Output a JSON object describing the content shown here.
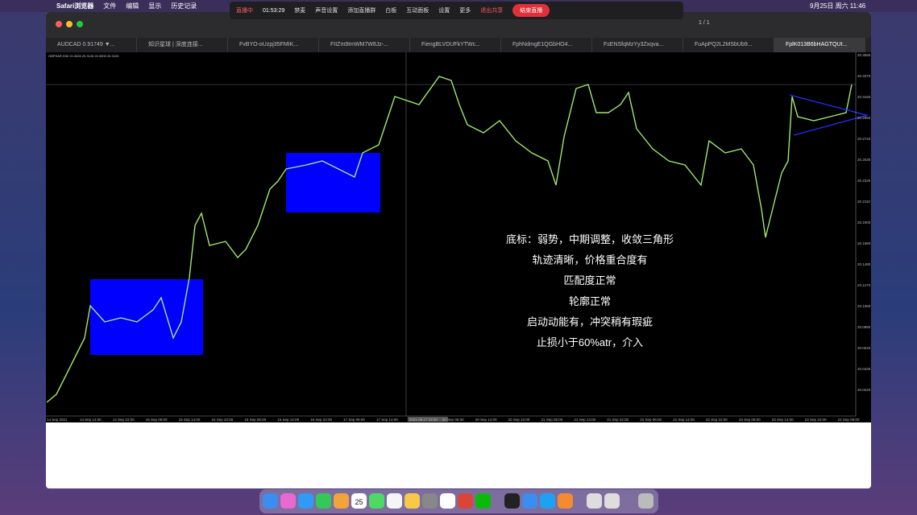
{
  "menu_bar": {
    "app": "Safari浏览器",
    "items": [
      "文件",
      "编辑",
      "显示",
      "历史记录"
    ],
    "clock": "9月25日 周六  11:46"
  },
  "recording_bar": {
    "status": "直播中",
    "timer": "01:53:29",
    "items": [
      "禁麦",
      "声音设置",
      "添加直播群",
      "白板",
      "互动面板",
      "设置",
      "更多"
    ],
    "stop_share": "退出共享",
    "end_button": "结束直播",
    "pages": "1 / 1"
  },
  "tabs": [
    "AUDCAD 0.91749 ▼...",
    "知识星球 | 深度连接...",
    "FvBYO-oUzpj35FMIK...",
    "FIIZm9ImWM7W8Jz-...",
    "FiengBLVDUFkYTWc...",
    "FphNdmgE1QGbHO4...",
    "FsENSfqMzYy3Zxqva...",
    "FuApPQ2L2MSbUb9...",
    "FplK013B6bHAGTQUt..."
  ],
  "chart": {
    "symbol": "GBPSAR,H30  20.3026 20.3126 20.3005 20.3109",
    "annotations": [
      "底标：弱势，中期调整，收敛三角形",
      "轨迹清晰，价格重合度有",
      "匹配度正常",
      "轮廓正常",
      "启动动能有，冲突稍有瑕疵",
      "止损小于60%atr，介入"
    ],
    "x_labels": [
      "14 Sep 2021",
      "14 Sep 14:00",
      "14 Sep 22:00",
      "15 Sep 06:00",
      "15 Sep 14:00",
      "15 Sep 22:00",
      "16 Sep 06:00",
      "16 Sep 14:00",
      "16 Sep 22:00",
      "17 Sep 06:00",
      "17 Sep 14:00",
      "2021.09.17 23:30",
      "20 Sep 06:00",
      "20 Sep 14:00",
      "20 Sep 22:00",
      "21 Sep 06:00",
      "21 Sep 14:00",
      "21 Sep 22:00",
      "22 Sep 06:00",
      "22 Sep 14:00",
      "22 Sep 22:00",
      "23 Sep 06:00",
      "23 Sep 14:00",
      "23 Sep 22:00",
      "24 Sep 06:00"
    ],
    "y_labels": [
      "20.3580",
      "20.3370",
      "20.3160",
      "20.2950",
      "20.2740",
      "20.2530",
      "20.2320",
      "20.2110",
      "20.1900",
      "20.1690",
      "20.1480",
      "20.1270",
      "20.1060",
      "20.0850",
      "20.0640",
      "20.0430",
      "20.0220"
    ]
  },
  "dock": {
    "calendar_day": "25"
  }
}
